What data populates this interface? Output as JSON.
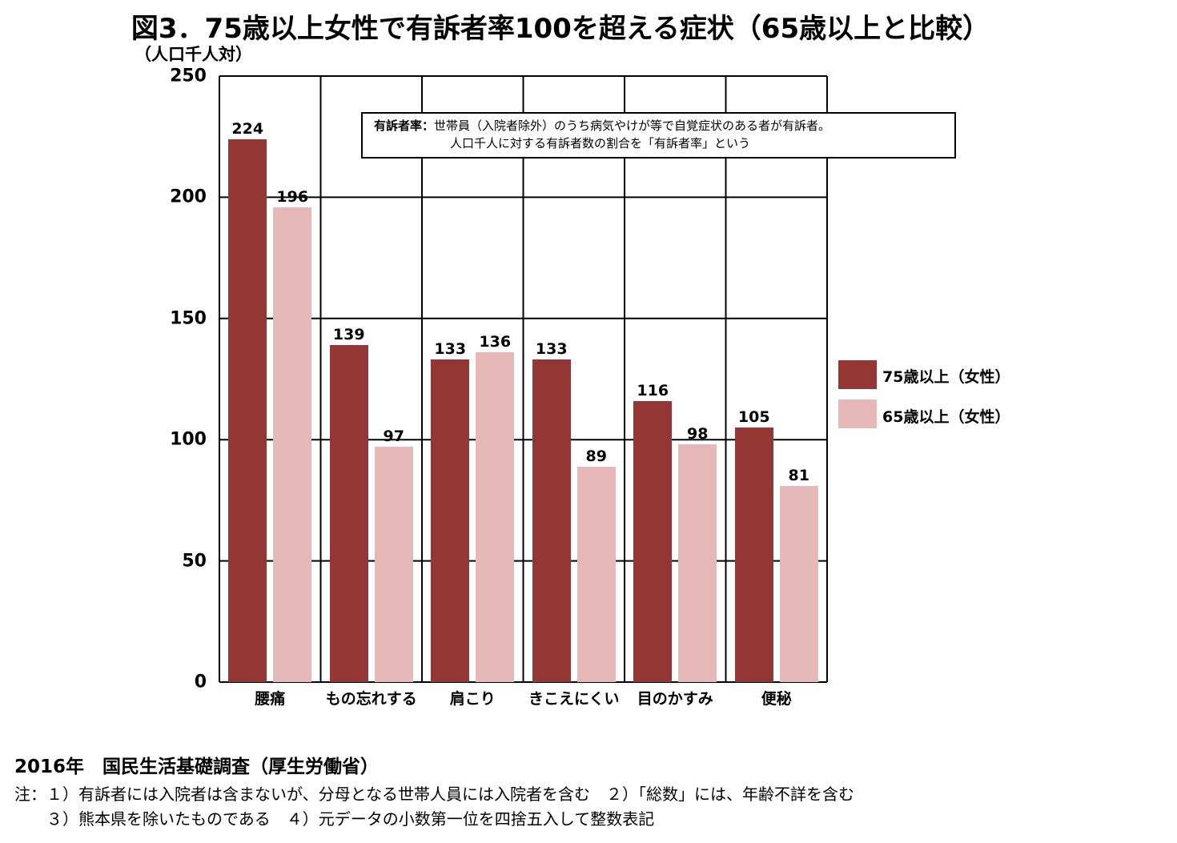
{
  "title": "図3．75歳以上女性で有訴者率100を超える症状（65歳以上と比較）",
  "unit_label": "（人口千人対）",
  "definition": {
    "term": "有訴者率：",
    "line1": "世帯員（入院者除外）のうち病気やけが等で自覚症状のある者が有訴者。",
    "line2": "人口千人に対する有訴者数の割合を「有訴者率」という"
  },
  "source": "2016年　国民生活基礎調査（厚生労働省）",
  "footnotes": [
    "注：１）有訴者には入院者は含まないが、分母となる世帯人員には入院者を含む　２）「総数」には、年齢不詳を含む",
    "　　３）熊本県を除いたものである　４）元データの小数第一位を四捨五入して整数表記"
  ],
  "chart_data": {
    "type": "bar",
    "title": "図3．75歳以上女性で有訴者率100を超える症状（65歳以上と比較）",
    "ylabel": "（人口千人対）",
    "ylim": [
      0,
      250
    ],
    "yticks": [
      "0",
      "50",
      "100",
      "150",
      "200",
      "250"
    ],
    "grid": true,
    "legend_position": "right",
    "categories": [
      "腰痛",
      "もの忘れする",
      "肩こり",
      "きこえにくい",
      "目のかすみ",
      "便秘"
    ],
    "series": [
      {
        "name": "75歳以上（女性）",
        "color": "#943634",
        "values": [
          224,
          139,
          133,
          133,
          116,
          105
        ]
      },
      {
        "name": "65歳以上（女性）",
        "color": "#e6b9b8",
        "values": [
          196,
          97,
          136,
          89,
          98,
          81
        ]
      }
    ]
  }
}
